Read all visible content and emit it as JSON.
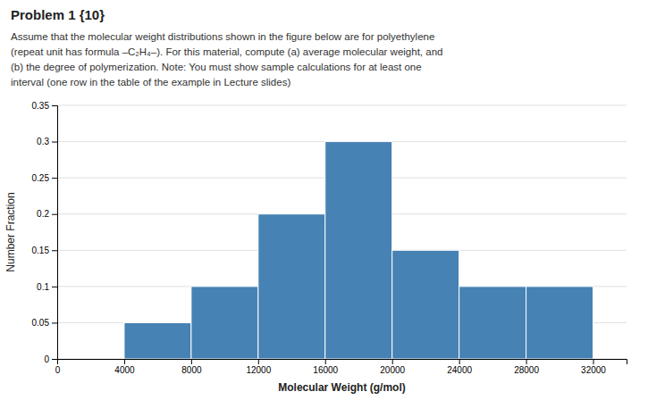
{
  "chart_data": {
    "type": "histogram",
    "title": "Problem 1 {10}",
    "annotations": [
      "Assume that the molecular weight distributions shown in the figure below are for polyethylene",
      "(repeat unit has formula –C₂H₄–). For this material, compute (a) average molecular weight, and",
      "(b) the degree of polymerization.  Note: You must show sample calculations for at least one",
      "interval (one row in the table of the example in Lecture slides)"
    ],
    "xlabel": "Molecular Weight (g/mol)",
    "ylabel": "Number Fraction",
    "bins": [
      4000,
      8000,
      12000,
      16000,
      20000,
      24000,
      28000,
      32000
    ],
    "values": [
      0.05,
      0.1,
      0.2,
      0.3,
      0.15,
      0.1,
      0.1
    ],
    "xlim": [
      0,
      34000
    ],
    "xticks": [
      0,
      4000,
      8000,
      12000,
      16000,
      20000,
      24000,
      28000,
      32000
    ],
    "ylim": [
      0,
      0.35
    ],
    "yticks": [
      0,
      0.05,
      0.1,
      0.15,
      0.2,
      0.25,
      0.3,
      0.35
    ],
    "grid": true
  }
}
